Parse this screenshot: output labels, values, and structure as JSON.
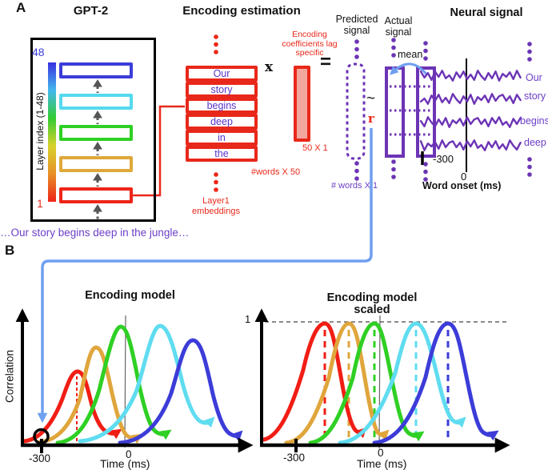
{
  "panel_a": {
    "label": "A",
    "gpt2": {
      "title": "GPT-2",
      "top_index": "48",
      "bottom_index": "1",
      "axis_label": "Layer index (1-48)"
    },
    "sentence": "…Our story begins deep in the jungle…",
    "encoding": {
      "title": "Encoding estimation",
      "words": [
        "Our",
        "story",
        "begins",
        "deep",
        "in",
        "the"
      ],
      "times_symbol": "x",
      "equals_symbol": "=",
      "coeff_label": "Encoding\ncoefficients lag\nspecific",
      "coeff_dims": "50 X 1",
      "matrix_dims": "#words X 50",
      "embeddings_label": "Layer1\nembeddings"
    },
    "predicted": {
      "title": "Predicted\nsignal",
      "dims": "# words X 1"
    },
    "similarity": {
      "tilde": "~",
      "r_label": "r"
    },
    "actual": {
      "title": "Actual\nsignal",
      "mean_label": "mean",
      "tick_label": "-300"
    },
    "neural": {
      "title": "Neural signal",
      "zero_label": "0",
      "axis_label": "Word onset (ms)",
      "words": [
        "Our",
        "story",
        "begins",
        "deep"
      ]
    }
  },
  "panel_b": {
    "label": "B",
    "left_plot": {
      "title": "Encoding model",
      "ylabel": "Correlation",
      "xlabel": "Time (ms)",
      "tick_minus": "-300",
      "tick_zero": "0"
    },
    "right_plot": {
      "title": "Encoding model\nscaled",
      "one_label": "1",
      "xlabel": "Time (ms)",
      "tick_minus": "-300",
      "tick_zero": "0"
    }
  },
  "colors": {
    "layer_red": "#ee2418",
    "layer_orange": "#dfa83a",
    "layer_green": "#2fd024",
    "layer_cyan": "#55d9ee",
    "layer_blue": "#3c3cd9",
    "purple_signal": "#6c34b5",
    "purple_text": "#6b3fc8",
    "coeff_pink_fill": "#f2a79e",
    "connector_blue": "#6f9ff0",
    "arrow_gray": "#555555"
  }
}
